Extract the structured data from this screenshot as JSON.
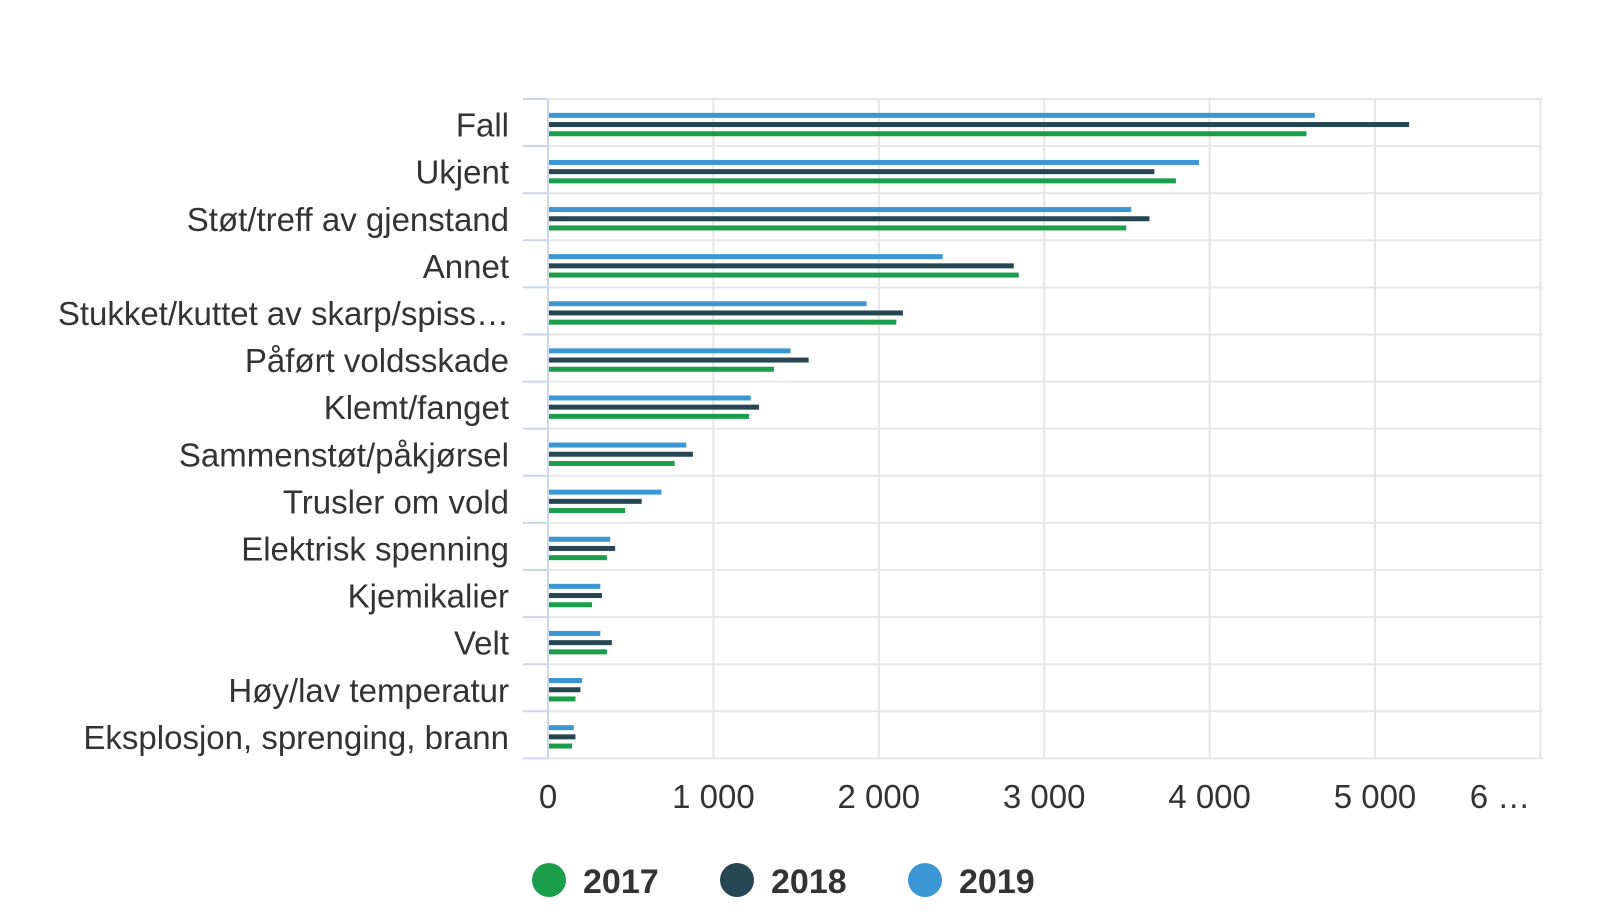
{
  "chart_data": {
    "type": "bar",
    "orientation": "horizontal",
    "title": "",
    "xlabel": "",
    "ylabel": "",
    "categories": [
      "Fall",
      "Ukjent",
      "Støt/treff av gjenstand",
      "Annet",
      "Stukket/kuttet av skarp/spiss…",
      "Påført voldsskade",
      "Klemt/fanget",
      "Sammenstøt/påkjørsel",
      "Trusler om vold",
      "Elektrisk spenning",
      "Kjemikalier",
      "Velt",
      "Høy/lav temperatur",
      "Eksplosjon, sprenging, brann"
    ],
    "series": [
      {
        "name": "2019",
        "color": "#3a97d4",
        "values": [
          4630,
          3930,
          3520,
          2380,
          1920,
          1460,
          1220,
          830,
          680,
          370,
          310,
          310,
          200,
          150
        ]
      },
      {
        "name": "2018",
        "color": "#264653",
        "values": [
          5200,
          3660,
          3630,
          2810,
          2140,
          1570,
          1270,
          870,
          560,
          400,
          320,
          380,
          190,
          160
        ]
      },
      {
        "name": "2017",
        "color": "#1a9e4b",
        "values": [
          4580,
          3790,
          3490,
          2840,
          2100,
          1360,
          1210,
          760,
          460,
          350,
          260,
          350,
          160,
          140
        ]
      }
    ],
    "legend_order": [
      "2017",
      "2018",
      "2019"
    ],
    "xlim": [
      0,
      6000
    ],
    "ticks": [
      "0",
      "1 000",
      "2 000",
      "3 000",
      "4 000",
      "5 000",
      "6 …"
    ],
    "tick_values": [
      0,
      1000,
      2000,
      3000,
      4000,
      5000,
      6000
    ],
    "grid": true,
    "legend_position": "bottom"
  }
}
